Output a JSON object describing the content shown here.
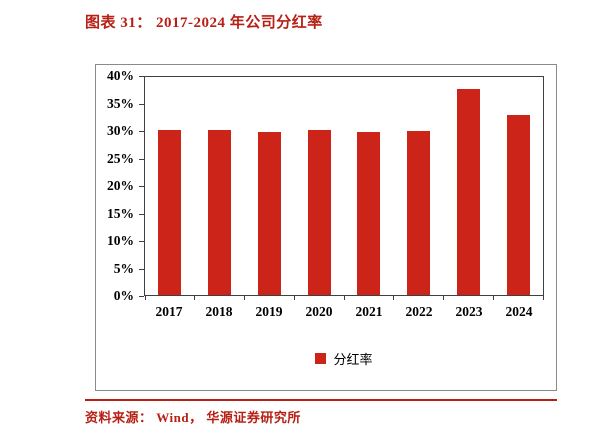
{
  "page": {
    "title": "图表 31： 2017-2024 年公司分红率",
    "source": "资料来源： Wind， 华源证券研究所"
  },
  "colors": {
    "accent_red": "#b72014",
    "bar_red": "#cc2418",
    "axis_line": "#404040"
  },
  "chart_data": {
    "type": "bar",
    "title": "2017-2024 年公司分红率",
    "categories": [
      "2017",
      "2018",
      "2019",
      "2020",
      "2021",
      "2022",
      "2023",
      "2024"
    ],
    "values": [
      30.3,
      30.2,
      30.0,
      30.2,
      30.0,
      30.1,
      37.8,
      33.0
    ],
    "series_name": "分红率",
    "xlabel": "",
    "ylabel": "",
    "ylim": [
      0,
      40
    ],
    "yticks": [
      0,
      5,
      10,
      15,
      20,
      25,
      30,
      35,
      40
    ],
    "ytick_format": "percent",
    "legend_position": "bottom",
    "grid": false
  }
}
